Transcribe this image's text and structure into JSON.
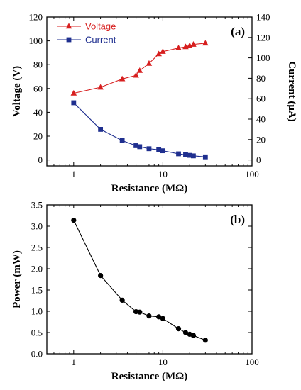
{
  "chart_data": [
    {
      "type": "line",
      "panel_label": "(a)",
      "xlabel": "Resistance (MΩ)",
      "ylabel": "Voltage (V)",
      "y2label": "Current (μA)",
      "xscale": "log",
      "xlim": [
        0.5,
        100
      ],
      "xticks": [
        1,
        10,
        100
      ],
      "xtick_labels": [
        "1",
        "10",
        "100"
      ],
      "ylim": [
        -5,
        120
      ],
      "yticks": [
        0,
        20,
        40,
        60,
        80,
        100,
        120
      ],
      "y2lim": [
        -5.833,
        140
      ],
      "y2ticks": [
        0,
        20,
        40,
        60,
        80,
        100,
        120,
        140
      ],
      "legend_position": "top-left",
      "series": [
        {
          "name": "Voltage",
          "axis": "left",
          "color": "#d71f1f",
          "marker": "triangle",
          "x": [
            1,
            2,
            3.5,
            5,
            5.5,
            7,
            9,
            10,
            15,
            18,
            20,
            22,
            30
          ],
          "y": [
            56,
            61,
            68,
            71,
            75,
            81,
            89,
            91,
            94,
            95,
            96,
            97,
            98
          ]
        },
        {
          "name": "Current",
          "axis": "right",
          "color": "#1f2f8f",
          "marker": "square",
          "x": [
            1,
            2,
            3.5,
            5,
            5.5,
            7,
            9,
            10,
            15,
            18,
            20,
            22,
            30
          ],
          "y": [
            56,
            30,
            19,
            14,
            13,
            11,
            10,
            9,
            6,
            5,
            4.5,
            4,
            3
          ]
        }
      ]
    },
    {
      "type": "line",
      "panel_label": "(b)",
      "xlabel": "Resistance (MΩ)",
      "ylabel": "Power (mW)",
      "xscale": "log",
      "xlim": [
        0.5,
        100
      ],
      "xticks": [
        1,
        10,
        100
      ],
      "xtick_labels": [
        "1",
        "10",
        "100"
      ],
      "ylim": [
        0,
        3.5
      ],
      "yticks": [
        0.0,
        0.5,
        1.0,
        1.5,
        2.0,
        2.5,
        3.0,
        3.5
      ],
      "ytick_labels": [
        "0.0",
        "0.5",
        "1.0",
        "1.5",
        "2.0",
        "2.5",
        "3.0",
        "3.5"
      ],
      "series": [
        {
          "color": "#000000",
          "marker": "circle",
          "x": [
            1,
            2,
            3.5,
            5,
            5.5,
            7,
            9,
            10,
            15,
            18,
            20,
            22,
            30
          ],
          "y": [
            3.14,
            1.84,
            1.26,
            0.99,
            0.98,
            0.89,
            0.87,
            0.83,
            0.59,
            0.5,
            0.46,
            0.43,
            0.32
          ]
        }
      ]
    }
  ]
}
